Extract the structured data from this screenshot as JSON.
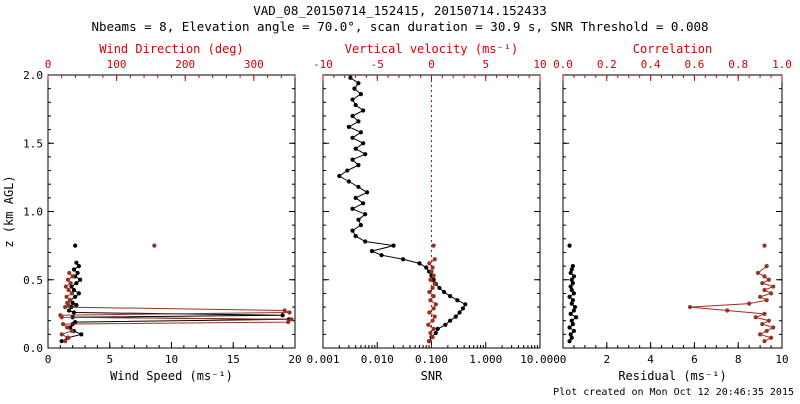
{
  "figure": {
    "title": "VAD_08_20150714_152415, 20150714.152433",
    "subtitle": "Nbeams = 8, Elevation angle = 70.0°, scan duration = 30.9 s, SNR Threshold = 0.008",
    "footer": "Plot created on Mon Oct 12 20:46:35 2015"
  },
  "colors": {
    "axis_red": "#d40000",
    "data_red": "#993122",
    "black": "#000000"
  },
  "chart_data": [
    {
      "name": "wind-panel",
      "type": "scatter",
      "y_axis": {
        "label": "z (km AGL)",
        "lim": [
          0,
          2
        ],
        "ticks": [
          0,
          0.5,
          1,
          1.5,
          2
        ],
        "tick_labels": [
          "0.0",
          "0.5",
          "1.0",
          "1.5",
          "2.0"
        ],
        "minor": 0.1,
        "show_labels": true
      },
      "bottom_axis": {
        "label": "Wind Speed (ms⁻¹)",
        "scale": "linear",
        "lim": [
          0,
          20
        ],
        "ticks": [
          0,
          5,
          10,
          15,
          20
        ],
        "tick_labels": [
          "0",
          "5",
          "10",
          "15",
          "20"
        ],
        "minor": 1
      },
      "top_axis": {
        "label": "Wind Direction (deg)",
        "scale": "linear",
        "lim": [
          0,
          360
        ],
        "ticks": [
          0,
          100,
          200,
          300
        ],
        "tick_labels": [
          "0",
          "100",
          "200",
          "300"
        ],
        "minor": 20,
        "color": "axis_red"
      },
      "series": [
        {
          "name": "wind-speed",
          "axis": "bottom",
          "color": "black",
          "line": true,
          "marker": true,
          "z": [
            0.05,
            0.075,
            0.1,
            0.125,
            0.15,
            0.175,
            0.19,
            0.21,
            0.225,
            0.24,
            0.26,
            0.275,
            0.3,
            0.315,
            0.33,
            0.35,
            0.375,
            0.4,
            0.425,
            0.45,
            0.475,
            0.5,
            0.525,
            0.55,
            0.575,
            0.6,
            0.625,
            0.75
          ],
          "values": [
            1.1,
            1.6,
            2.7,
            2.1,
            1.8,
            2.0,
            2.2,
            19.5,
            2.0,
            19.0,
            2.1,
            1.7,
            1.9,
            2.3,
            2.0,
            1.8,
            2.2,
            2.5,
            2.1,
            1.9,
            2.3,
            2.6,
            2.2,
            2.4,
            2.1,
            2.5,
            2.3,
            2.2
          ]
        },
        {
          "name": "wind-direction",
          "axis": "top",
          "color": "data_red",
          "line": true,
          "marker": true,
          "z": [
            0.05,
            0.075,
            0.1,
            0.125,
            0.15,
            0.175,
            0.19,
            0.21,
            0.225,
            0.24,
            0.26,
            0.275,
            0.3,
            0.315,
            0.33,
            0.35,
            0.375,
            0.4,
            0.425,
            0.45,
            0.475,
            0.5,
            0.525,
            0.55,
            0.75
          ],
          "values": [
            25,
            30,
            20,
            35,
            28,
            22,
            350,
            355,
            20,
            18,
            352,
            345,
            25,
            30,
            28,
            32,
            27,
            35,
            30,
            26,
            33,
            29,
            36,
            31,
            155
          ]
        }
      ]
    },
    {
      "name": "snr-panel",
      "type": "scatter",
      "y_axis": {
        "label": "",
        "lim": [
          0,
          2
        ],
        "ticks": [
          0,
          0.5,
          1,
          1.5,
          2
        ],
        "tick_labels": [],
        "minor": 0.1,
        "show_labels": false
      },
      "bottom_axis": {
        "label": "SNR",
        "scale": "log",
        "lim": [
          0.001,
          10
        ],
        "ticks": [
          0.001,
          0.01,
          0.1,
          1,
          10
        ],
        "tick_labels": [
          "0.001",
          "0.010",
          "0.100",
          "1.000",
          "10.000"
        ],
        "minor": "log"
      },
      "top_axis": {
        "label": "Vertical velocity (ms⁻¹)",
        "scale": "linear",
        "lim": [
          -10,
          10
        ],
        "ticks": [
          -10,
          -5,
          0,
          5,
          10
        ],
        "tick_labels": [
          "-10",
          "-5",
          "0",
          "5",
          "10"
        ],
        "minor": 1,
        "color": "axis_red"
      },
      "refline": {
        "axis": "top",
        "value": 0,
        "color": "axis_red",
        "dash": "2,3"
      },
      "series": [
        {
          "name": "snr-profile",
          "axis": "bottom",
          "color": "black",
          "line": true,
          "marker": true,
          "z": [
            0.05,
            0.08,
            0.11,
            0.14,
            0.17,
            0.2,
            0.23,
            0.26,
            0.29,
            0.32,
            0.35,
            0.38,
            0.41,
            0.44,
            0.47,
            0.5,
            0.53,
            0.56,
            0.59,
            0.62,
            0.65,
            0.68,
            0.71,
            0.75,
            0.78,
            0.82,
            0.86,
            0.9,
            0.94,
            0.98,
            1.02,
            1.06,
            1.1,
            1.14,
            1.18,
            1.22,
            1.26,
            1.3,
            1.34,
            1.38,
            1.42,
            1.46,
            1.5,
            1.54,
            1.58,
            1.62,
            1.66,
            1.7,
            1.74,
            1.78,
            1.82,
            1.86,
            1.9,
            1.94,
            1.98
          ],
          "values": [
            0.09,
            0.1,
            0.12,
            0.13,
            0.18,
            0.22,
            0.28,
            0.33,
            0.38,
            0.42,
            0.3,
            0.22,
            0.17,
            0.14,
            0.12,
            0.11,
            0.1,
            0.09,
            0.08,
            0.06,
            0.03,
            0.012,
            0.008,
            0.02,
            0.006,
            0.004,
            0.0035,
            0.005,
            0.0045,
            0.006,
            0.0035,
            0.0055,
            0.004,
            0.0065,
            0.0045,
            0.003,
            0.002,
            0.0028,
            0.0045,
            0.0035,
            0.006,
            0.004,
            0.0055,
            0.0035,
            0.005,
            0.003,
            0.0045,
            0.0035,
            0.0055,
            0.004,
            0.0035,
            0.005,
            0.0038,
            0.0045,
            0.0032
          ]
        },
        {
          "name": "vertical-velocity",
          "axis": "top",
          "color": "data_red",
          "line": true,
          "marker": true,
          "z": [
            0.05,
            0.08,
            0.11,
            0.14,
            0.17,
            0.2,
            0.23,
            0.26,
            0.29,
            0.32,
            0.35,
            0.38,
            0.41,
            0.44,
            0.47,
            0.5,
            0.53,
            0.56,
            0.59,
            0.62,
            0.65,
            0.75
          ],
          "values": [
            -0.2,
            0.1,
            -0.1,
            0.2,
            -0.3,
            0.1,
            0.3,
            -0.2,
            0.2,
            0.4,
            -0.1,
            0.2,
            -0.2,
            0.1,
            0.3,
            -0.1,
            0.2,
            0.0,
            0.1,
            -0.2,
            0.3,
            0.2
          ]
        }
      ]
    },
    {
      "name": "residual-panel",
      "type": "scatter",
      "y_axis": {
        "label": "",
        "lim": [
          0,
          2
        ],
        "ticks": [
          0,
          0.5,
          1,
          1.5,
          2
        ],
        "tick_labels": [],
        "minor": 0.1,
        "show_labels": false
      },
      "bottom_axis": {
        "label": "Residual (ms⁻¹)",
        "scale": "linear",
        "lim": [
          0,
          10
        ],
        "ticks": [
          0,
          2,
          4,
          6,
          8,
          10
        ],
        "tick_labels": [
          "0",
          "2",
          "4",
          "6",
          "8",
          "10"
        ],
        "minor": 0.5
      },
      "top_axis": {
        "label": "Correlation",
        "scale": "linear",
        "lim": [
          0,
          1
        ],
        "ticks": [
          0,
          0.2,
          0.4,
          0.6,
          0.8,
          1.0
        ],
        "tick_labels": [
          "0.0",
          "0.2",
          "0.4",
          "0.6",
          "0.8",
          "1.0"
        ],
        "minor": 0.05,
        "color": "axis_red"
      },
      "series": [
        {
          "name": "residual",
          "axis": "bottom",
          "color": "black",
          "line": true,
          "marker": true,
          "z": [
            0.05,
            0.075,
            0.1,
            0.125,
            0.15,
            0.175,
            0.2,
            0.225,
            0.25,
            0.275,
            0.3,
            0.325,
            0.35,
            0.375,
            0.4,
            0.425,
            0.45,
            0.475,
            0.5,
            0.525,
            0.55,
            0.575,
            0.6,
            0.75
          ],
          "values": [
            0.3,
            0.4,
            0.35,
            0.5,
            0.3,
            0.45,
            0.4,
            0.6,
            0.35,
            0.5,
            0.55,
            0.4,
            0.45,
            0.3,
            0.5,
            0.4,
            0.35,
            0.45,
            0.4,
            0.5,
            0.35,
            0.4,
            0.45,
            0.3
          ]
        },
        {
          "name": "correlation",
          "axis": "top",
          "color": "data_red",
          "line": true,
          "marker": true,
          "z": [
            0.05,
            0.075,
            0.1,
            0.125,
            0.15,
            0.175,
            0.2,
            0.225,
            0.25,
            0.275,
            0.3,
            0.325,
            0.35,
            0.375,
            0.4,
            0.425,
            0.45,
            0.475,
            0.5,
            0.525,
            0.55,
            0.6,
            0.75
          ],
          "values": [
            0.92,
            0.95,
            0.9,
            0.93,
            0.96,
            0.91,
            0.94,
            0.88,
            0.92,
            0.75,
            0.58,
            0.85,
            0.93,
            0.9,
            0.95,
            0.92,
            0.96,
            0.91,
            0.94,
            0.92,
            0.89,
            0.93,
            0.92
          ]
        }
      ]
    }
  ]
}
